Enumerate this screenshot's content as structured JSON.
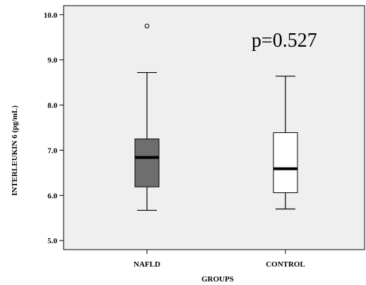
{
  "chart_data": {
    "type": "boxplot",
    "title": "",
    "xlabel": "GROUPS",
    "ylabel": "INTERLEUKIN 6 (pg/mL)",
    "ylim": [
      4.8,
      10.2
    ],
    "yticks": [
      "5.0",
      "6.0",
      "7.0",
      "8.0",
      "9.0",
      "10.0"
    ],
    "grid": false,
    "annotation": "p=0.527",
    "colors": {
      "plot_bg": "#efefef",
      "nafld_box": "#6e6e6e",
      "control_box": "#ffffff"
    },
    "series": [
      {
        "category": "NAFLD",
        "min": 5.67,
        "q1": 6.19,
        "median": 6.84,
        "q3": 7.25,
        "max": 8.72,
        "outliers": [
          9.75
        ]
      },
      {
        "category": "CONTROL",
        "min": 5.7,
        "q1": 6.06,
        "median": 6.59,
        "q3": 7.39,
        "max": 8.64,
        "outliers": []
      }
    ]
  }
}
